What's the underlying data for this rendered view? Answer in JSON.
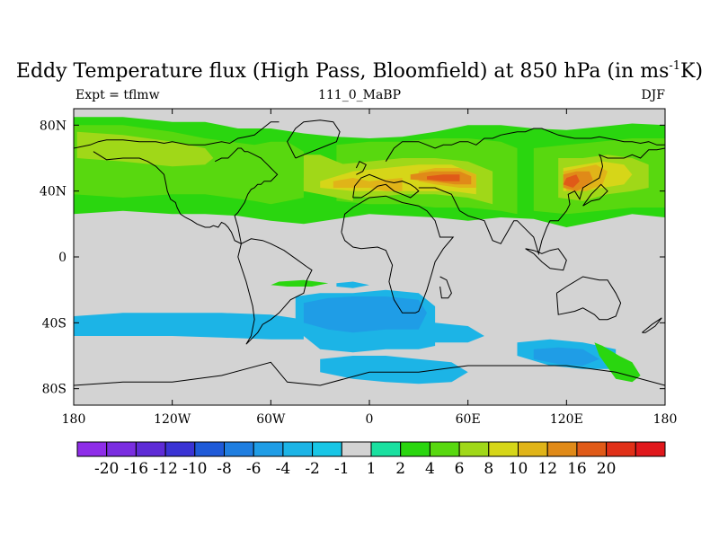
{
  "title": {
    "prefix": "Eddy Temperature flux (High Pass, Bloomfield) at 850 hPa (in ms",
    "superscript": "-1",
    "suffix": "K)"
  },
  "subtitle": {
    "left": "Expt = tflmw",
    "center": "111_0_MaBP",
    "right": "DJF"
  },
  "map": {
    "projection": "cylindrical-equidistant",
    "lon_range": [
      -180,
      180
    ],
    "lat_range": [
      -90,
      90
    ],
    "x_ticks": [
      {
        "lon": -180,
        "label": "180"
      },
      {
        "lon": -120,
        "label": "120W"
      },
      {
        "lon": -60,
        "label": "60W"
      },
      {
        "lon": 0,
        "label": "0"
      },
      {
        "lon": 60,
        "label": "60E"
      },
      {
        "lon": 120,
        "label": "120E"
      },
      {
        "lon": 180,
        "label": "180"
      }
    ],
    "y_ticks": [
      {
        "lat": 80,
        "label": "80N"
      },
      {
        "lat": 40,
        "label": "40N"
      },
      {
        "lat": 0,
        "label": "0"
      },
      {
        "lat": -40,
        "label": "40S"
      },
      {
        "lat": -80,
        "label": "80S"
      }
    ],
    "missing_color": "#d3d3d3"
  },
  "colorbar": {
    "colors": [
      "#8e2de8",
      "#7a2de0",
      "#5e2bd6",
      "#3a33d4",
      "#1f5ad8",
      "#1f7ee0",
      "#1f9de6",
      "#1cb4e6",
      "#18c6e6",
      "#d3d3d3",
      "#1ae0a0",
      "#2ad60f",
      "#58d80f",
      "#a0d818",
      "#d6d618",
      "#e0b418",
      "#e08a18",
      "#e05a18",
      "#e03018",
      "#e0181c"
    ],
    "labels": [
      "-20",
      "-16",
      "-12",
      "-10",
      "-8",
      "-6",
      "-4",
      "-2",
      "-1",
      "1",
      "2",
      "4",
      "6",
      "8",
      "10",
      "12",
      "16",
      "20"
    ]
  },
  "fields": [
    {
      "level": "2",
      "lon": [
        -180,
        -150,
        -120,
        -100,
        -80,
        -60,
        -40,
        -20,
        0,
        20,
        40,
        60,
        80,
        100,
        120,
        140,
        160,
        180,
        180,
        160,
        140,
        120,
        100,
        80,
        60,
        40,
        20,
        0,
        -20,
        -40,
        -60,
        -80,
        -100,
        -120,
        -150,
        -180
      ],
      "lat": [
        85,
        85,
        82,
        82,
        78,
        78,
        75,
        73,
        72,
        73,
        76,
        80,
        80,
        78,
        77,
        79,
        81,
        80,
        24,
        26,
        22,
        18,
        23,
        24,
        22,
        24,
        25,
        26,
        23,
        20,
        22,
        25,
        26,
        26,
        28,
        26
      ]
    },
    {
      "level": "4",
      "lon": [
        -180,
        -150,
        -120,
        -100,
        -85,
        -70,
        -60,
        -50,
        -40,
        -40,
        -50,
        -60,
        -70,
        -85,
        -100,
        -120,
        -150,
        -180
      ],
      "lat": [
        80,
        80,
        76,
        72,
        70,
        68,
        70,
        70,
        64,
        36,
        34,
        32,
        34,
        36,
        38,
        38,
        36,
        38
      ]
    },
    {
      "level": "4",
      "lon": [
        -20,
        0,
        20,
        40,
        60,
        80,
        90,
        90,
        80,
        60,
        40,
        20,
        0,
        -20
      ],
      "lat": [
        68,
        70,
        70,
        72,
        72,
        70,
        66,
        26,
        28,
        30,
        30,
        32,
        32,
        34
      ]
    },
    {
      "level": "4",
      "lon": [
        100,
        120,
        140,
        160,
        180,
        180,
        160,
        140,
        120,
        100
      ],
      "lat": [
        66,
        68,
        70,
        72,
        72,
        30,
        30,
        28,
        26,
        28
      ]
    },
    {
      "level": "6",
      "lon": [
        -178,
        -150,
        -120,
        -100,
        -95,
        -100,
        -120,
        -150,
        -178
      ],
      "lat": [
        76,
        74,
        70,
        66,
        60,
        56,
        55,
        58,
        60
      ]
    },
    {
      "level": "6",
      "lon": [
        -40,
        -30,
        -20,
        -10,
        -10,
        -20,
        -30,
        -40
      ],
      "lat": [
        62,
        62,
        58,
        54,
        34,
        36,
        38,
        40
      ]
    },
    {
      "level": "6",
      "lon": [
        -40,
        -20,
        0,
        20,
        40,
        60,
        75,
        75,
        60,
        40,
        20,
        0,
        -20,
        -40
      ],
      "lat": [
        48,
        56,
        58,
        60,
        60,
        58,
        52,
        32,
        36,
        38,
        38,
        36,
        38,
        40
      ]
    },
    {
      "level": "6",
      "lon": [
        115,
        130,
        145,
        160,
        170,
        170,
        160,
        145,
        130,
        115
      ],
      "lat": [
        60,
        60,
        62,
        60,
        56,
        42,
        40,
        38,
        34,
        36
      ]
    },
    {
      "level": "8",
      "lon": [
        -30,
        -10,
        10,
        30,
        50,
        65,
        65,
        50,
        30,
        10,
        -10,
        -30
      ],
      "lat": [
        46,
        52,
        54,
        56,
        56,
        50,
        38,
        40,
        40,
        40,
        40,
        42
      ]
    },
    {
      "level": "8",
      "lon": [
        118,
        130,
        142,
        155,
        160,
        155,
        142,
        130,
        118
      ],
      "lat": [
        54,
        56,
        58,
        56,
        50,
        44,
        42,
        40,
        40
      ]
    },
    {
      "level": "10",
      "lon": [
        -22,
        -10,
        0,
        10,
        20,
        20,
        10,
        0,
        -10,
        -22
      ],
      "lat": [
        46,
        48,
        46,
        47,
        48,
        40,
        40,
        42,
        42,
        42
      ]
    },
    {
      "level": "10",
      "lon": [
        30,
        40,
        55,
        65,
        65,
        55,
        40,
        30
      ],
      "lat": [
        52,
        54,
        54,
        50,
        42,
        42,
        44,
        46
      ]
    },
    {
      "level": "10",
      "lon": [
        118,
        128,
        138,
        145,
        142,
        132,
        120
      ],
      "lat": [
        52,
        54,
        56,
        52,
        44,
        40,
        40
      ]
    },
    {
      "level": "12",
      "lon": [
        25,
        38,
        55,
        62,
        62,
        52,
        38,
        25
      ],
      "lat": [
        50,
        52,
        52,
        49,
        44,
        44,
        46,
        47
      ]
    },
    {
      "level": "12",
      "lon": [
        118,
        126,
        134,
        136,
        132,
        126,
        118
      ],
      "lat": [
        50,
        52,
        52,
        47,
        43,
        40,
        42
      ]
    },
    {
      "level": "16",
      "lon": [
        35,
        45,
        55,
        55,
        45,
        35
      ],
      "lat": [
        49,
        50,
        50,
        46,
        46,
        47
      ]
    },
    {
      "level": "16",
      "lon": [
        120,
        126,
        128,
        124,
        118
      ],
      "lat": [
        48,
        50,
        46,
        42,
        44
      ]
    },
    {
      "level": "-2",
      "lon": [
        -180,
        -150,
        -120,
        -90,
        -60,
        -40,
        -40,
        -60,
        -90,
        -120,
        -150,
        -180
      ],
      "lat": [
        -36,
        -34,
        -34,
        -34,
        -35,
        -38,
        -50,
        -50,
        -49,
        -48,
        -48,
        -48
      ]
    },
    {
      "level": "-2",
      "lon": [
        -45,
        -30,
        -10,
        10,
        30,
        40,
        40,
        30,
        10,
        -10,
        -30,
        -45
      ],
      "lat": [
        -24,
        -22,
        -22,
        -20,
        -22,
        -30,
        -54,
        -56,
        -56,
        -58,
        -56,
        -44
      ]
    },
    {
      "level": "-2",
      "lon": [
        20,
        40,
        60,
        70,
        60,
        40,
        25
      ],
      "lat": [
        -40,
        -40,
        -42,
        -48,
        -52,
        -52,
        -50
      ]
    },
    {
      "level": "-2",
      "lon": [
        -30,
        -10,
        10,
        30,
        50,
        60,
        50,
        30,
        10,
        -10,
        -30
      ],
      "lat": [
        -62,
        -60,
        -60,
        -62,
        -64,
        -70,
        -76,
        -77,
        -76,
        -74,
        -70
      ]
    },
    {
      "level": "-2",
      "lon": [
        90,
        110,
        130,
        150,
        150,
        130,
        110,
        90
      ],
      "lat": [
        -52,
        -50,
        -52,
        -56,
        -68,
        -68,
        -66,
        -60
      ]
    },
    {
      "level": "-2",
      "lon": [
        -20,
        -10,
        0,
        -10,
        -20
      ],
      "lat": [
        -16,
        -15,
        -17,
        -19,
        -18
      ]
    },
    {
      "level": "-4",
      "lon": [
        -40,
        -25,
        -10,
        10,
        30,
        35,
        30,
        10,
        -10,
        -25,
        -40
      ],
      "lat": [
        -28,
        -25,
        -24,
        -24,
        -26,
        -34,
        -44,
        -44,
        -46,
        -44,
        -40
      ]
    },
    {
      "level": "-4",
      "lon": [
        100,
        115,
        130,
        140,
        130,
        115,
        100
      ],
      "lat": [
        -56,
        -55,
        -56,
        -62,
        -66,
        -65,
        -62
      ]
    },
    {
      "level": "2",
      "lon": [
        137,
        142,
        152,
        160,
        165,
        160,
        150,
        140
      ],
      "lat": [
        -52,
        -54,
        -60,
        -64,
        -72,
        -76,
        -74,
        -60
      ]
    },
    {
      "level": "2",
      "lon": [
        -55,
        -40,
        -25,
        -35,
        -50,
        -60
      ],
      "lat": [
        -15,
        -14,
        -16,
        -18,
        -18,
        -17
      ]
    }
  ],
  "coastlines": [
    {
      "lon": [
        -180,
        -170,
        -165,
        -160,
        -150,
        -140,
        -130,
        -125,
        -120,
        -110,
        -100,
        -90,
        -85,
        -80,
        -75,
        -70,
        -65,
        -60,
        -55
      ],
      "lat": [
        66,
        68,
        70,
        71,
        71,
        70,
        70,
        69,
        70,
        68,
        68,
        70,
        69,
        72,
        73,
        74,
        78,
        82,
        82
      ]
    },
    {
      "lon": [
        -168,
        -160,
        -150,
        -140,
        -135,
        -130,
        -125,
        -124,
        -123,
        -121,
        -118,
        -117,
        -115,
        -112,
        -108,
        -105,
        -100,
        -97,
        -95,
        -92,
        -90,
        -88,
        -86,
        -84,
        -82,
        -80,
        -78,
        -80,
        -82,
        -80,
        -78,
        -76,
        -74,
        -72,
        -70,
        -68,
        -66,
        -64,
        -62,
        -60,
        -58,
        -56,
        -58,
        -60,
        -62,
        -64,
        -66,
        -70,
        -74,
        -76,
        -78,
        -80,
        -82,
        -84,
        -86,
        -90,
        -94
      ],
      "lat": [
        64,
        59,
        60,
        60,
        58,
        55,
        50,
        45,
        40,
        35,
        33,
        30,
        26,
        24,
        22,
        20,
        18,
        18,
        19,
        18,
        21,
        20,
        18,
        15,
        10,
        9,
        8,
        18,
        25,
        27,
        30,
        33,
        38,
        41,
        42,
        44,
        44,
        46,
        46,
        46,
        48,
        50,
        52,
        54,
        56,
        58,
        60,
        62,
        64,
        64,
        66,
        66,
        64,
        62,
        60,
        60,
        58
      ]
    },
    {
      "lon": [
        -45,
        -40,
        -30,
        -20,
        -18,
        -22,
        -30,
        -40,
        -45,
        -50,
        -45
      ],
      "lat": [
        60,
        62,
        66,
        70,
        76,
        82,
        83,
        82,
        78,
        70,
        60
      ]
    },
    {
      "lon": [
        -78,
        -72,
        -65,
        -60,
        -52,
        -45,
        -38,
        -35,
        -38,
        -40,
        -48,
        -55,
        -60,
        -65,
        -68,
        -72,
        -75,
        -72,
        -70,
        -71,
        -75,
        -78,
        -80,
        -78
      ],
      "lat": [
        8,
        11,
        10,
        8,
        4,
        -1,
        -6,
        -8,
        -14,
        -22,
        -26,
        -34,
        -38,
        -41,
        -46,
        -50,
        -53,
        -48,
        -38,
        -30,
        -15,
        -6,
        0,
        8
      ]
    },
    {
      "lon": [
        -10,
        -5,
        0,
        5,
        10,
        15,
        20,
        25,
        30,
        28,
        25,
        20,
        15,
        10,
        5,
        0,
        -5,
        -9,
        -10
      ],
      "lat": [
        36,
        36,
        39,
        43,
        44,
        40,
        38,
        36,
        40,
        42,
        44,
        46,
        45,
        46,
        48,
        50,
        48,
        43,
        36
      ]
    },
    {
      "lon": [
        -17,
        -15,
        -10,
        0,
        10,
        20,
        30,
        35,
        40,
        43,
        51,
        45,
        40,
        38,
        35,
        32,
        30,
        28,
        20,
        15,
        12,
        14,
        10,
        5,
        -5,
        -10,
        -15,
        -17
      ],
      "lat": [
        15,
        26,
        30,
        36,
        37,
        33,
        31,
        28,
        22,
        12,
        12,
        5,
        -3,
        -10,
        -20,
        -28,
        -33,
        -34,
        -34,
        -26,
        -15,
        -5,
        4,
        6,
        5,
        6,
        10,
        15
      ]
    },
    {
      "lon": [
        43,
        47,
        50,
        48,
        44,
        43
      ],
      "lat": [
        -12,
        -14,
        -22,
        -25,
        -25,
        -18
      ]
    },
    {
      "lon": [
        30,
        40,
        50,
        55,
        60,
        70,
        75,
        80,
        88,
        90,
        95,
        100,
        103,
        105,
        108,
        110,
        115,
        120,
        122,
        121,
        125,
        128,
        130,
        135,
        140,
        142,
        141,
        140,
        145,
        150,
        155,
        160,
        165,
        170,
        175,
        180
      ],
      "lat": [
        42,
        42,
        38,
        28,
        25,
        22,
        10,
        8,
        22,
        22,
        17,
        12,
        2,
        10,
        18,
        22,
        22,
        28,
        32,
        38,
        40,
        35,
        42,
        45,
        48,
        55,
        60,
        62,
        60,
        60,
        60,
        62,
        60,
        65,
        65,
        66
      ]
    },
    {
      "lon": [
        10,
        15,
        20,
        25,
        30,
        35,
        40,
        45,
        50,
        55,
        60,
        65,
        70,
        75,
        80,
        85,
        90,
        95,
        100,
        105,
        110,
        115,
        120,
        125,
        130,
        135,
        140,
        145,
        150,
        155,
        160,
        165,
        170,
        175,
        180
      ],
      "lat": [
        58,
        66,
        70,
        70,
        70,
        68,
        66,
        68,
        68,
        70,
        70,
        68,
        72,
        72,
        74,
        75,
        76,
        76,
        78,
        78,
        76,
        74,
        73,
        72,
        72,
        72,
        73,
        72,
        71,
        70,
        70,
        69,
        70,
        68,
        68
      ]
    },
    {
      "lon": [
        -8,
        -4,
        -2,
        -6,
        -8
      ],
      "lat": [
        50,
        52,
        56,
        58,
        54
      ]
    },
    {
      "lon": [
        130,
        135,
        140,
        145,
        141,
        135,
        130
      ],
      "lat": [
        31,
        34,
        35,
        40,
        44,
        38,
        31
      ]
    },
    {
      "lon": [
        114,
        120,
        130,
        140,
        145,
        150,
        153,
        150,
        145,
        140,
        137,
        130,
        125,
        115,
        114
      ],
      "lat": [
        -22,
        -18,
        -12,
        -14,
        -14,
        -22,
        -28,
        -36,
        -38,
        -38,
        -35,
        -31,
        -33,
        -35,
        -22
      ]
    },
    {
      "lon": [
        166,
        172,
        178,
        174,
        168,
        166
      ],
      "lat": [
        -46,
        -41,
        -37,
        -42,
        -46,
        -46
      ]
    },
    {
      "lon": [
        95,
        100,
        105,
        110,
        118,
        120,
        115,
        110,
        105,
        100,
        95
      ],
      "lat": [
        5,
        2,
        -3,
        -7,
        -8,
        -2,
        5,
        4,
        2,
        4,
        5
      ]
    },
    {
      "lon": [
        -180,
        -150,
        -120,
        -90,
        -60,
        -50,
        -30,
        0,
        30,
        60,
        90,
        120,
        150,
        180
      ],
      "lat": [
        -78,
        -76,
        -76,
        -72,
        -64,
        -76,
        -78,
        -70,
        -70,
        -66,
        -66,
        -66,
        -70,
        -78
      ]
    }
  ]
}
